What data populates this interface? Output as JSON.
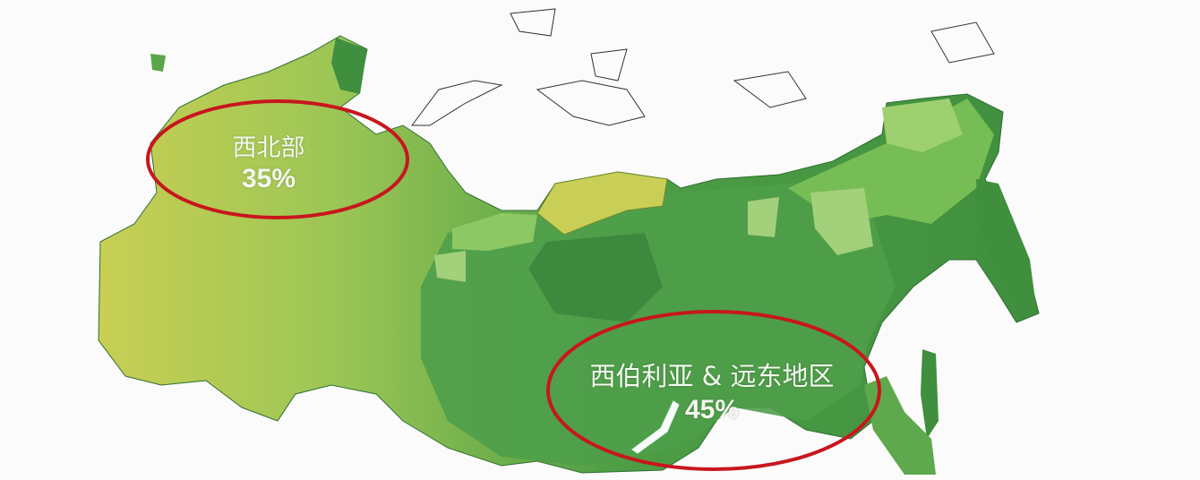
{
  "map": {
    "colors": {
      "land_dark": "#3f8f3f",
      "land_mid": "#55a84a",
      "land_light": "#8cc864",
      "land_yellow": "#c8cf54",
      "ellipse": "#c8161d",
      "background": "#fbfbfb"
    },
    "regions": [
      {
        "name": "西北部",
        "share": "35%"
      },
      {
        "name": "西伯利亚 & 远东地区",
        "share": "45%"
      }
    ]
  }
}
